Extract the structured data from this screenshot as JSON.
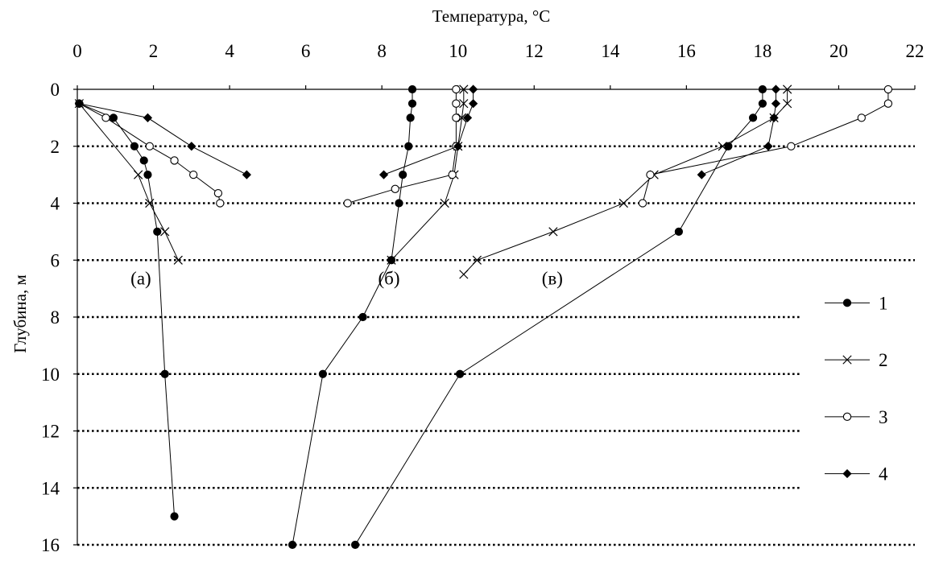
{
  "chart_data": {
    "type": "line",
    "title": "",
    "xlabel": "Температура, °C",
    "ylabel": "Глубина, м",
    "xlim": [
      0,
      22
    ],
    "ylim": [
      0,
      16
    ],
    "x_axis_position": "top",
    "y_axis_inverted": true,
    "x_ticks": [
      "0",
      "2",
      "4",
      "6",
      "8",
      "10",
      "12",
      "14",
      "16",
      "18",
      "20",
      "22"
    ],
    "y_ticks": [
      "0",
      "2",
      "4",
      "6",
      "8",
      "10",
      "12",
      "14",
      "16"
    ],
    "grid": {
      "horizontal": "dotted",
      "vertical": false
    },
    "legend_position": "right",
    "legend": [
      {
        "label": "1",
        "marker": "filled-circle"
      },
      {
        "label": "2",
        "marker": "cross"
      },
      {
        "label": "3",
        "marker": "open-circle"
      },
      {
        "label": "4",
        "marker": "filled-diamond"
      }
    ],
    "annotations": [
      "(а)",
      "(б)",
      "(в)"
    ],
    "panels": [
      {
        "label": "(а)",
        "series": [
          {
            "name": "1",
            "marker": "filled-circle",
            "points": [
              [
                0.05,
                0.5
              ],
              [
                0.95,
                1.0
              ],
              [
                1.5,
                2.0
              ],
              [
                1.75,
                2.5
              ],
              [
                1.85,
                3.0
              ],
              [
                2.1,
                5.0
              ],
              [
                2.3,
                10.0
              ],
              [
                2.55,
                15.0
              ]
            ]
          },
          {
            "name": "2",
            "marker": "cross",
            "points": [
              [
                0.05,
                0.5
              ],
              [
                1.6,
                3.0
              ],
              [
                1.9,
                4.0
              ],
              [
                2.3,
                5.0
              ],
              [
                2.65,
                6.0
              ]
            ]
          },
          {
            "name": "3",
            "marker": "open-circle",
            "points": [
              [
                0.05,
                0.5
              ],
              [
                0.75,
                1.0
              ],
              [
                1.9,
                2.0
              ],
              [
                2.55,
                2.5
              ],
              [
                3.05,
                3.0
              ],
              [
                3.7,
                3.65
              ],
              [
                3.75,
                4.0
              ]
            ]
          },
          {
            "name": "4",
            "marker": "filled-diamond",
            "points": [
              [
                0.05,
                0.5
              ],
              [
                1.85,
                1.0
              ],
              [
                3.0,
                2.0
              ],
              [
                4.45,
                3.0
              ]
            ]
          }
        ]
      },
      {
        "label": "(б)",
        "series": [
          {
            "name": "1",
            "marker": "filled-circle",
            "points": [
              [
                8.8,
                0.0
              ],
              [
                8.8,
                0.5
              ],
              [
                8.75,
                1.0
              ],
              [
                8.7,
                2.0
              ],
              [
                8.55,
                3.0
              ],
              [
                8.45,
                4.0
              ],
              [
                8.25,
                6.0
              ],
              [
                7.5,
                8.0
              ],
              [
                6.45,
                10.0
              ],
              [
                5.65,
                16.0
              ]
            ]
          },
          {
            "name": "2",
            "marker": "cross",
            "points": [
              [
                10.15,
                0.0
              ],
              [
                10.15,
                0.5
              ],
              [
                10.1,
                1.0
              ],
              [
                10.0,
                2.0
              ],
              [
                9.9,
                3.0
              ],
              [
                9.65,
                4.0
              ],
              [
                8.25,
                6.0
              ]
            ]
          },
          {
            "name": "3",
            "marker": "open-circle",
            "points": [
              [
                9.95,
                0.0
              ],
              [
                9.95,
                0.5
              ],
              [
                9.95,
                1.0
              ],
              [
                9.95,
                2.0
              ],
              [
                9.85,
                3.0
              ],
              [
                8.35,
                3.5
              ],
              [
                7.1,
                4.0
              ]
            ]
          },
          {
            "name": "4",
            "marker": "filled-diamond",
            "points": [
              [
                10.4,
                0.0
              ],
              [
                10.4,
                0.5
              ],
              [
                10.25,
                1.0
              ],
              [
                10.0,
                2.0
              ],
              [
                8.05,
                3.0
              ]
            ]
          }
        ]
      },
      {
        "label": "(в)",
        "series": [
          {
            "name": "1",
            "marker": "filled-circle",
            "points": [
              [
                18.0,
                0.0
              ],
              [
                18.0,
                0.5
              ],
              [
                17.75,
                1.0
              ],
              [
                17.1,
                2.0
              ],
              [
                15.8,
                5.0
              ],
              [
                10.05,
                10.0
              ],
              [
                7.3,
                16.0
              ]
            ]
          },
          {
            "name": "2",
            "marker": "cross",
            "points": [
              [
                18.65,
                0.0
              ],
              [
                18.65,
                0.5
              ],
              [
                18.3,
                1.0
              ],
              [
                16.95,
                2.0
              ],
              [
                15.15,
                3.0
              ],
              [
                14.35,
                4.0
              ],
              [
                12.5,
                5.0
              ],
              [
                10.5,
                6.0
              ],
              [
                10.15,
                6.5
              ]
            ]
          },
          {
            "name": "3",
            "marker": "open-circle",
            "points": [
              [
                21.3,
                0.0
              ],
              [
                21.3,
                0.5
              ],
              [
                20.6,
                1.0
              ],
              [
                18.75,
                2.0
              ],
              [
                15.05,
                3.0
              ],
              [
                14.85,
                4.0
              ]
            ]
          },
          {
            "name": "4",
            "marker": "filled-diamond",
            "points": [
              [
                18.35,
                0.0
              ],
              [
                18.35,
                0.5
              ],
              [
                18.3,
                1.0
              ],
              [
                18.15,
                2.0
              ],
              [
                16.4,
                3.0
              ]
            ]
          }
        ]
      }
    ]
  }
}
